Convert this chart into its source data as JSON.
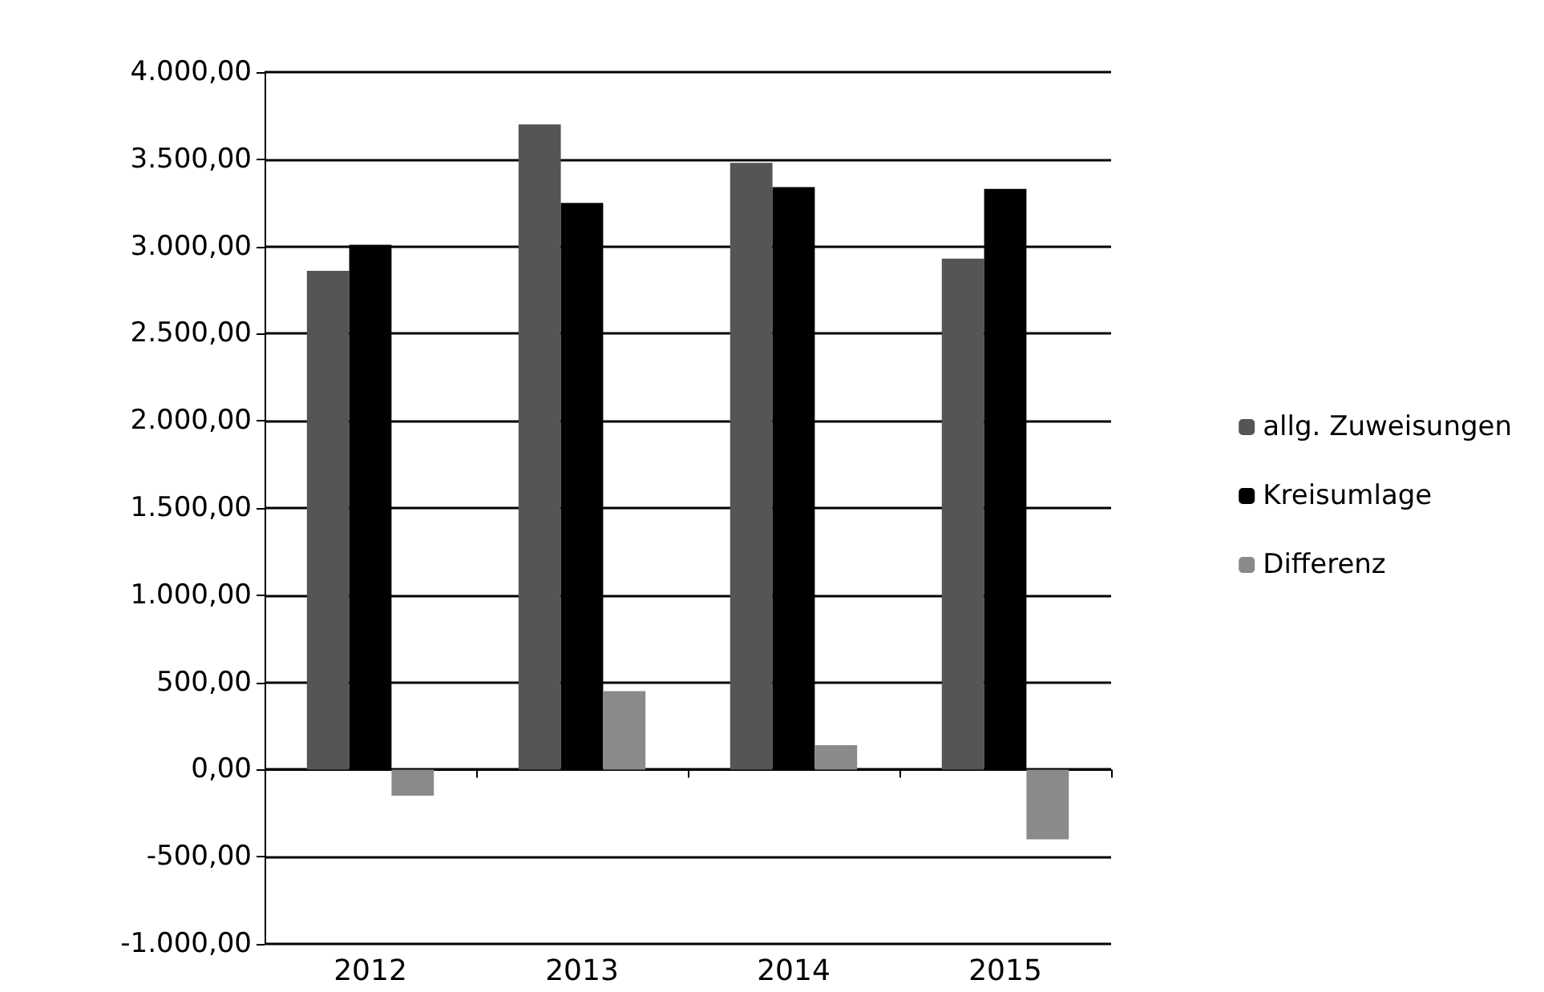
{
  "chart_data": {
    "type": "bar",
    "categories": [
      "2012",
      "2013",
      "2014",
      "2015"
    ],
    "series": [
      {
        "name": "allg. Zuweisungen",
        "color": "#555555",
        "values": [
          2860,
          3700,
          3480,
          2930
        ]
      },
      {
        "name": "Kreisumlage",
        "color": "#000000",
        "values": [
          3010,
          3250,
          3340,
          3330
        ]
      },
      {
        "name": "Differenz",
        "color": "#8a8a8a",
        "values": [
          -150,
          450,
          140,
          -400
        ]
      }
    ],
    "ylim": [
      -1000,
      4000
    ],
    "yticks": [
      {
        "value": -1000,
        "label": "-1.000,00"
      },
      {
        "value": -500,
        "label": "-500,00"
      },
      {
        "value": 0,
        "label": "0,00"
      },
      {
        "value": 500,
        "label": "500,00"
      },
      {
        "value": 1000,
        "label": "1.000,00"
      },
      {
        "value": 1500,
        "label": "1.500,00"
      },
      {
        "value": 2000,
        "label": "2.000,00"
      },
      {
        "value": 2500,
        "label": "2.500,00"
      },
      {
        "value": 3000,
        "label": "3.000,00"
      },
      {
        "value": 3500,
        "label": "3.500,00"
      },
      {
        "value": 4000,
        "label": "4.000,00"
      }
    ],
    "grid": "y",
    "legend": "right"
  }
}
